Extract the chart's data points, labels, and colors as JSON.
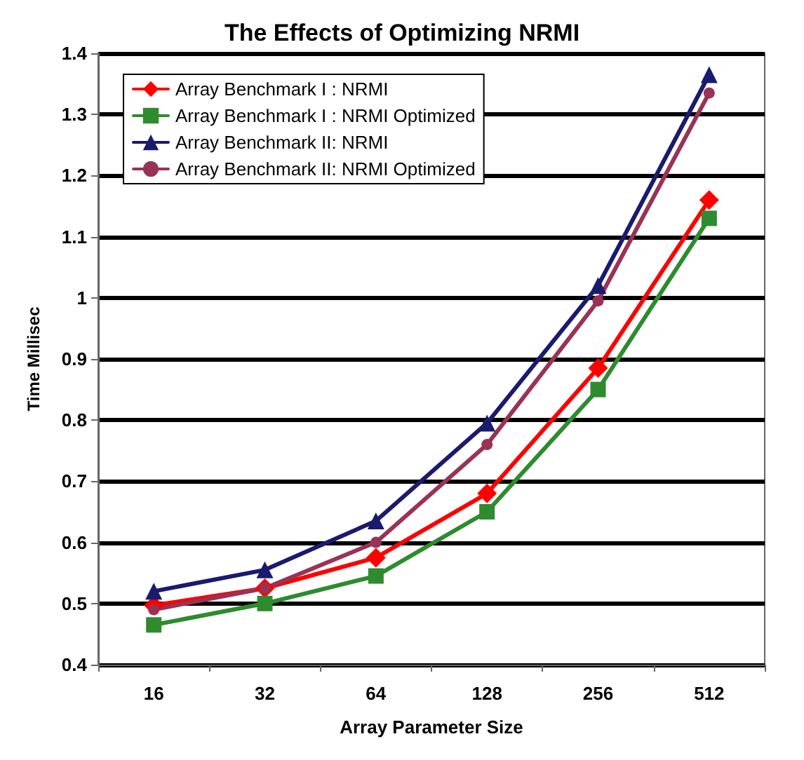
{
  "chart_data": {
    "type": "line",
    "title": "The Effects of Optimizing NRMI",
    "xlabel": "Array Parameter Size",
    "ylabel": "Time Millisec",
    "categories": [
      "16",
      "32",
      "64",
      "128",
      "256",
      "512"
    ],
    "series": [
      {
        "name": "Array Benchmark I : NRMI",
        "color": "#ff0000",
        "marker": "diamond",
        "values": [
          0.497,
          0.525,
          0.575,
          0.68,
          0.885,
          1.16
        ]
      },
      {
        "name": "Array Benchmark I : NRMI Optimized",
        "color": "#2e8b2e",
        "marker": "square",
        "values": [
          0.465,
          0.5,
          0.545,
          0.65,
          0.85,
          1.13
        ]
      },
      {
        "name": "Array Benchmark II: NRMI",
        "color": "#1a1a6e",
        "marker": "triangle",
        "values": [
          0.52,
          0.555,
          0.635,
          0.795,
          1.02,
          1.365
        ]
      },
      {
        "name": "Array Benchmark II: NRMI Optimized",
        "color": "#993355",
        "marker": "circle",
        "values": [
          0.49,
          0.525,
          0.6,
          0.76,
          0.995,
          1.335
        ]
      }
    ],
    "ylim": [
      0.4,
      1.4
    ],
    "yticks": [
      0.4,
      0.5,
      0.6,
      0.7,
      0.8,
      0.9,
      1,
      1.1,
      1.2,
      1.3,
      1.4
    ],
    "grid": "y",
    "legend": "top left",
    "line_style": "solid"
  }
}
